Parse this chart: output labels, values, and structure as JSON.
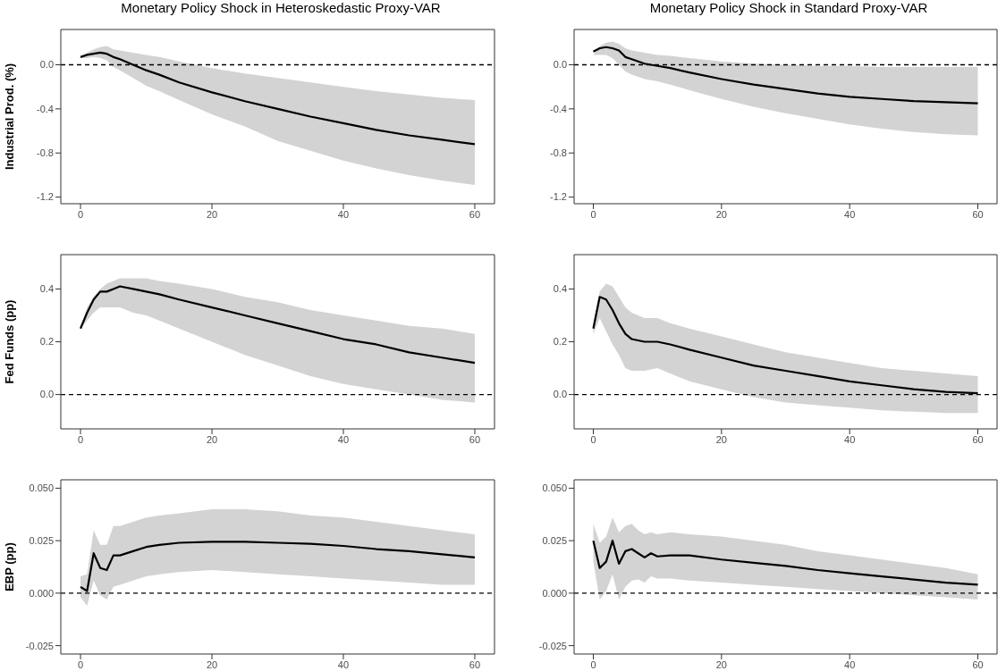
{
  "chart_data": [
    {
      "type": "line",
      "title": "Monetary Policy Shock in Heteroskedastic Proxy-VAR",
      "ylabel": "Industrial Prod. (%)",
      "x": [
        0,
        1,
        2,
        3,
        4,
        5,
        6,
        8,
        10,
        12,
        15,
        20,
        25,
        30,
        35,
        40,
        45,
        50,
        55,
        60
      ],
      "xlim": [
        -3,
        63
      ],
      "xticks": [
        0,
        20,
        40,
        60
      ],
      "ylim": [
        -1.26,
        0.32
      ],
      "yticks": [
        -1.2,
        -0.8,
        -0.4,
        {
          "value": 0,
          "label": "0.0"
        }
      ],
      "series": [
        {
          "color": "#000000",
          "values": [
            0.07,
            0.09,
            0.1,
            0.11,
            0.1,
            0.07,
            0.05,
            0.0,
            -0.05,
            -0.09,
            -0.16,
            -0.25,
            -0.33,
            -0.4,
            -0.47,
            -0.53,
            -0.59,
            -0.64,
            -0.68,
            -0.72
          ],
          "lower": [
            0.06,
            0.06,
            0.07,
            0.06,
            0.04,
            -0.02,
            -0.05,
            -0.12,
            -0.19,
            -0.24,
            -0.32,
            -0.45,
            -0.56,
            -0.69,
            -0.78,
            -0.87,
            -0.94,
            -1.0,
            -1.05,
            -1.09
          ],
          "upper": [
            0.07,
            0.11,
            0.14,
            0.16,
            0.17,
            0.14,
            0.13,
            0.11,
            0.09,
            0.07,
            0.03,
            -0.03,
            -0.08,
            -0.12,
            -0.16,
            -0.2,
            -0.24,
            -0.27,
            -0.3,
            -0.32
          ]
        }
      ],
      "ref_lines": [
        {
          "axis": "y",
          "value": 0,
          "color": "#000000",
          "line_style": "dashed"
        }
      ]
    },
    {
      "type": "line",
      "title": "Monetary Policy Shock in Standard Proxy-VAR",
      "x": [
        0,
        1,
        2,
        3,
        4,
        5,
        6,
        8,
        10,
        12,
        15,
        20,
        25,
        30,
        35,
        40,
        45,
        50,
        55,
        60
      ],
      "xlim": [
        -3,
        63
      ],
      "xticks": [
        0,
        20,
        40,
        60
      ],
      "ylim": [
        -1.26,
        0.32
      ],
      "yticks": [
        -1.2,
        -0.8,
        -0.4,
        {
          "value": 0,
          "label": "0.0"
        }
      ],
      "series": [
        {
          "color": "#000000",
          "values": [
            0.12,
            0.15,
            0.16,
            0.15,
            0.13,
            0.07,
            0.05,
            0.01,
            -0.01,
            -0.03,
            -0.07,
            -0.13,
            -0.18,
            -0.22,
            -0.26,
            -0.29,
            -0.31,
            -0.33,
            -0.34,
            -0.35
          ],
          "lower": [
            0.09,
            0.09,
            0.09,
            0.06,
            0.0,
            -0.06,
            -0.09,
            -0.13,
            -0.15,
            -0.18,
            -0.23,
            -0.31,
            -0.38,
            -0.44,
            -0.49,
            -0.54,
            -0.58,
            -0.61,
            -0.63,
            -0.64
          ],
          "upper": [
            0.09,
            0.17,
            0.2,
            0.21,
            0.19,
            0.15,
            0.13,
            0.11,
            0.09,
            0.08,
            0.06,
            0.03,
            0.01,
            0.0,
            -0.01,
            -0.01,
            -0.02,
            -0.02,
            -0.02,
            -0.02
          ]
        }
      ],
      "ref_lines": [
        {
          "axis": "y",
          "value": 0,
          "color": "#000000",
          "line_style": "dashed"
        }
      ]
    },
    {
      "type": "line",
      "ylabel": "Fed Funds (pp)",
      "x": [
        0,
        1,
        2,
        3,
        4,
        5,
        6,
        8,
        10,
        12,
        15,
        20,
        25,
        30,
        35,
        40,
        45,
        50,
        55,
        60
      ],
      "xlim": [
        -3,
        63
      ],
      "xticks": [
        0,
        20,
        40,
        60
      ],
      "ylim": [
        -0.13,
        0.53
      ],
      "yticks": [
        {
          "value": 0,
          "label": "0.0"
        },
        0.2,
        0.4
      ],
      "series": [
        {
          "color": "#000000",
          "values": [
            0.25,
            0.31,
            0.36,
            0.39,
            0.39,
            0.4,
            0.41,
            0.4,
            0.39,
            0.38,
            0.36,
            0.33,
            0.3,
            0.27,
            0.24,
            0.21,
            0.19,
            0.16,
            0.14,
            0.12
          ],
          "lower": [
            0.25,
            0.28,
            0.31,
            0.33,
            0.33,
            0.33,
            0.33,
            0.31,
            0.3,
            0.28,
            0.25,
            0.2,
            0.15,
            0.11,
            0.07,
            0.04,
            0.02,
            0.0,
            -0.02,
            -0.03
          ],
          "upper": [
            0.25,
            0.33,
            0.37,
            0.4,
            0.42,
            0.43,
            0.44,
            0.44,
            0.44,
            0.43,
            0.42,
            0.4,
            0.37,
            0.35,
            0.32,
            0.3,
            0.28,
            0.26,
            0.25,
            0.23
          ]
        }
      ],
      "ref_lines": [
        {
          "axis": "y",
          "value": 0,
          "color": "#000000",
          "line_style": "dashed"
        }
      ]
    },
    {
      "type": "line",
      "x": [
        0,
        1,
        2,
        3,
        4,
        5,
        6,
        8,
        10,
        12,
        15,
        20,
        25,
        30,
        35,
        40,
        45,
        50,
        55,
        60
      ],
      "xlim": [
        -3,
        63
      ],
      "xticks": [
        0,
        20,
        40,
        60
      ],
      "ylim": [
        -0.13,
        0.53
      ],
      "yticks": [
        {
          "value": 0,
          "label": "0.0"
        },
        0.2,
        0.4
      ],
      "series": [
        {
          "color": "#000000",
          "values": [
            0.25,
            0.37,
            0.36,
            0.32,
            0.27,
            0.23,
            0.21,
            0.2,
            0.2,
            0.19,
            0.17,
            0.14,
            0.11,
            0.09,
            0.07,
            0.05,
            0.035,
            0.02,
            0.01,
            0.005
          ],
          "lower": [
            0.23,
            0.29,
            0.24,
            0.19,
            0.15,
            0.1,
            0.09,
            0.09,
            0.1,
            0.08,
            0.05,
            0.02,
            -0.01,
            -0.03,
            -0.04,
            -0.05,
            -0.06,
            -0.065,
            -0.07,
            -0.07
          ],
          "upper": [
            0.27,
            0.39,
            0.42,
            0.41,
            0.37,
            0.33,
            0.31,
            0.29,
            0.29,
            0.27,
            0.25,
            0.22,
            0.19,
            0.16,
            0.14,
            0.12,
            0.1,
            0.09,
            0.08,
            0.07
          ]
        }
      ],
      "ref_lines": [
        {
          "axis": "y",
          "value": 0,
          "color": "#000000",
          "line_style": "dashed"
        }
      ]
    },
    {
      "type": "line",
      "ylabel": "EBP (pp)",
      "x": [
        0,
        1,
        2,
        3,
        4,
        5,
        6,
        8,
        10,
        12,
        15,
        20,
        25,
        30,
        35,
        40,
        45,
        50,
        55,
        60
      ],
      "xlim": [
        -3,
        63
      ],
      "xticks": [
        0,
        20,
        40,
        60
      ],
      "ylim": [
        -0.029,
        0.054
      ],
      "yticks": [
        {
          "value": -0.025,
          "label": "-0.025"
        },
        {
          "value": 0,
          "label": "0.000"
        },
        {
          "value": 0.025,
          "label": "0.025"
        },
        {
          "value": 0.05,
          "label": "0.050"
        }
      ],
      "series": [
        {
          "color": "#000000",
          "values": [
            0.003,
            0.001,
            0.019,
            0.012,
            0.011,
            0.018,
            0.018,
            0.02,
            0.022,
            0.023,
            0.024,
            0.0245,
            0.0245,
            0.024,
            0.0235,
            0.0225,
            0.021,
            0.02,
            0.0185,
            0.017
          ],
          "lower": [
            -0.002,
            -0.006,
            0.006,
            -0.001,
            -0.003,
            0.003,
            0.004,
            0.006,
            0.008,
            0.009,
            0.01,
            0.011,
            0.01,
            0.009,
            0.008,
            0.007,
            0.006,
            0.005,
            0.004,
            0.004
          ],
          "upper": [
            0.008,
            0.009,
            0.03,
            0.023,
            0.023,
            0.032,
            0.032,
            0.034,
            0.036,
            0.037,
            0.038,
            0.04,
            0.04,
            0.039,
            0.037,
            0.036,
            0.034,
            0.032,
            0.03,
            0.028
          ]
        }
      ],
      "ref_lines": [
        {
          "axis": "y",
          "value": 0,
          "color": "#000000",
          "line_style": "dashed"
        }
      ]
    },
    {
      "type": "line",
      "x": [
        0,
        1,
        2,
        3,
        4,
        5,
        6,
        7,
        8,
        9,
        10,
        12,
        15,
        20,
        25,
        30,
        35,
        40,
        45,
        50,
        55,
        60
      ],
      "xlim": [
        -3,
        63
      ],
      "xticks": [
        0,
        20,
        40,
        60
      ],
      "ylim": [
        -0.029,
        0.054
      ],
      "yticks": [
        {
          "value": -0.025,
          "label": "-0.025"
        },
        {
          "value": 0,
          "label": "0.000"
        },
        {
          "value": 0.025,
          "label": "0.025"
        },
        {
          "value": 0.05,
          "label": "0.050"
        }
      ],
      "series": [
        {
          "color": "#000000",
          "values": [
            0.025,
            0.012,
            0.015,
            0.025,
            0.014,
            0.02,
            0.021,
            0.019,
            0.017,
            0.019,
            0.0175,
            0.018,
            0.018,
            0.016,
            0.0145,
            0.013,
            0.011,
            0.0095,
            0.008,
            0.0065,
            0.005,
            0.004
          ],
          "lower": [
            0.015,
            -0.003,
            0.001,
            0.009,
            -0.003,
            0.003,
            0.006,
            0.0065,
            0.005,
            0.008,
            0.007,
            0.007,
            0.006,
            0.005,
            0.004,
            0.003,
            0.002,
            0.001,
            0.0,
            -0.001,
            -0.002,
            -0.003
          ],
          "upper": [
            0.033,
            0.024,
            0.027,
            0.036,
            0.029,
            0.032,
            0.033,
            0.03,
            0.028,
            0.029,
            0.028,
            0.029,
            0.028,
            0.027,
            0.025,
            0.023,
            0.02,
            0.018,
            0.016,
            0.014,
            0.012,
            0.009
          ]
        }
      ],
      "ref_lines": [
        {
          "axis": "y",
          "value": 0,
          "color": "#000000",
          "line_style": "dashed"
        }
      ]
    }
  ]
}
